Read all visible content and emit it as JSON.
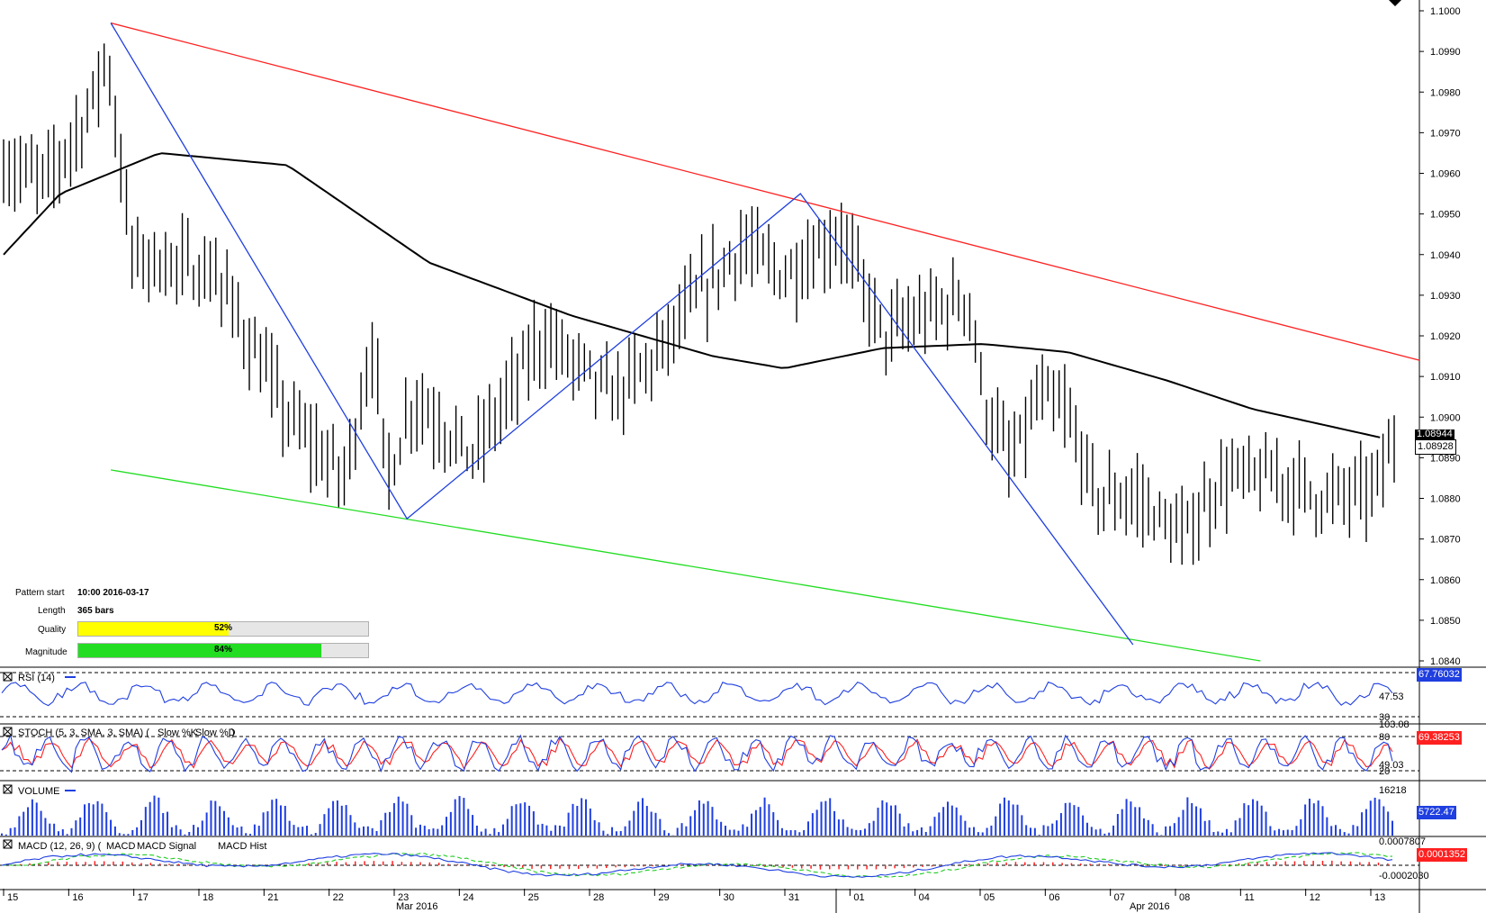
{
  "chart_data": {
    "type": "candlestick",
    "title": "",
    "main": {
      "ylim": [
        1.084,
        1.1
      ],
      "yticks": [
        "1.1000",
        "1.0990",
        "1.0980",
        "1.0970",
        "1.0960",
        "1.0950",
        "1.0940",
        "1.0930",
        "1.0920",
        "1.0910",
        "1.0900",
        "1.0890",
        "1.0880",
        "1.0870",
        "1.0860",
        "1.0850",
        "1.0840"
      ],
      "last_price": "1.08944",
      "bid_price": "1.08928",
      "pattern": {
        "type": "channel-down",
        "resistance": [
          {
            "i": 0.073,
            "p": 1.0997
          },
          {
            "i": 1.0,
            "p": 1.0914
          }
        ],
        "support": [
          {
            "i": 0.073,
            "p": 1.0887
          },
          {
            "i": 0.888,
            "p": 1.084
          }
        ],
        "zigzag": [
          {
            "i": 0.073,
            "p": 1.0997
          },
          {
            "i": 0.268,
            "p": 1.0875
          },
          {
            "i": 0.527,
            "p": 1.0955
          },
          {
            "i": 0.746,
            "p": 1.0844
          }
        ]
      }
    },
    "x_date_labels": [
      "15",
      "16",
      "17",
      "18",
      "21",
      "22",
      "23",
      "24",
      "25",
      "28",
      "29",
      "30",
      "31",
      "01",
      "04",
      "05",
      "06",
      "07",
      "08",
      "11",
      "12",
      "13"
    ],
    "x_month_labels": [
      "Mar 2016",
      "Apr 2016"
    ],
    "indicators": [
      {
        "name": "RSI",
        "label": "RSI (14)",
        "value": "67.76032",
        "levels": [
          "30"
        ],
        "ticks": [
          "47.53"
        ]
      },
      {
        "name": "STOCH",
        "label": "STOCH (5, 3, SMA, 3, SMA)",
        "series": [
          "Slow %K",
          "Slow %D"
        ],
        "value": "69.38253",
        "levels": [
          "80",
          "20"
        ],
        "ticks": [
          "103.08",
          "49.03"
        ]
      },
      {
        "name": "VOLUME",
        "label": "VOLUME",
        "value": "5722.47",
        "ticks": [
          "16218"
        ]
      },
      {
        "name": "MACD",
        "label": "MACD (12, 26, 9)",
        "series": [
          "MACD",
          "MACD Signal",
          "MACD Hist"
        ],
        "value": "0.0001352",
        "ticks": [
          "0.0007807",
          "-0.0002030"
        ]
      }
    ]
  },
  "pattern_info": {
    "start_label": "Pattern start",
    "start_value": "10:00 2016-03-17",
    "length_label": "Length",
    "length_value": "365 bars",
    "quality_label": "Quality",
    "quality_value": 52,
    "quality_text": "52%",
    "magnitude_label": "Magnitude",
    "magnitude_value": 84,
    "magnitude_text": "84%"
  },
  "colors": {
    "resistance": "#ff2020",
    "support": "#22dd22",
    "zigzag": "#1f3fe0",
    "ma": "#000000",
    "quality": "#ffff00",
    "magnitude": "#22dd22",
    "rsi": "#1f3fe0",
    "stoch_k": "#1f3fe0",
    "stoch_d": "#ff2020",
    "macd": "#1f3fe0",
    "macd_signal": "#22cc22",
    "macd_hist": "#ff2020",
    "rsi_tag": "#1f3fe0",
    "stoch_tag": "#ff2020",
    "volume_tag": "#1f3fe0",
    "macd_tag": "#ff2020"
  }
}
